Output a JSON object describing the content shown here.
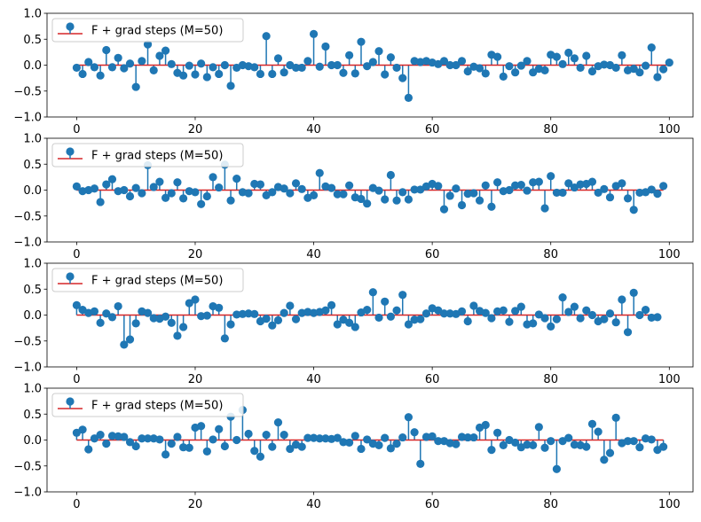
{
  "colors": {
    "marker": "#1f77b4",
    "stem": "#1f77b4",
    "baseline": "#d62728",
    "axes": "#000000",
    "background": "#ffffff",
    "legend_border": "#cccccc"
  },
  "chart_data": [
    {
      "type": "stem",
      "legend": {
        "marker_label": "F + grad steps (M=50)",
        "placement": "upper-left"
      },
      "xlim": [
        -5,
        104
      ],
      "ylim": [
        -1.0,
        1.0
      ],
      "x_ticks": [
        0,
        20,
        40,
        60,
        80,
        100
      ],
      "y_ticks": [
        -1.0,
        -0.5,
        0.0,
        0.5,
        1.0
      ],
      "grid": false,
      "values": [
        -0.05,
        -0.17,
        0.06,
        -0.04,
        -0.2,
        0.29,
        -0.04,
        0.14,
        -0.06,
        0.03,
        -0.42,
        0.08,
        0.4,
        -0.1,
        0.18,
        0.28,
        0.02,
        -0.15,
        -0.2,
        -0.01,
        -0.18,
        0.03,
        -0.23,
        -0.04,
        -0.17,
        0.0,
        -0.4,
        -0.05,
        0.0,
        -0.02,
        -0.04,
        -0.17,
        0.56,
        -0.17,
        0.13,
        -0.14,
        0.0,
        -0.05,
        -0.05,
        0.08,
        0.6,
        -0.03,
        0.36,
        0.0,
        0.0,
        -0.15,
        0.19,
        -0.16,
        0.45,
        -0.02,
        0.06,
        0.27,
        -0.18,
        0.15,
        -0.05,
        -0.25,
        -0.63,
        0.08,
        0.06,
        0.08,
        0.05,
        0.02,
        0.08,
        0.0,
        0.0,
        0.08,
        -0.12,
        -0.03,
        -0.06,
        -0.16,
        0.2,
        0.16,
        -0.22,
        -0.02,
        -0.14,
        -0.01,
        0.08,
        -0.14,
        -0.07,
        -0.1,
        0.2,
        0.16,
        0.02,
        0.24,
        0.13,
        -0.05,
        0.18,
        -0.12,
        -0.02,
        0.01,
        0.0,
        -0.05,
        0.19,
        -0.1,
        -0.07,
        -0.14,
        -0.01,
        0.34,
        -0.23,
        -0.08,
        0.05
      ]
    },
    {
      "type": "stem",
      "legend": {
        "marker_label": "F + grad steps (M=50)",
        "placement": "upper-left"
      },
      "xlim": [
        -5,
        104
      ],
      "ylim": [
        -1.0,
        1.0
      ],
      "x_ticks": [
        0,
        20,
        40,
        60,
        80,
        100
      ],
      "y_ticks": [
        -1.0,
        -0.5,
        0.0,
        0.5,
        1.0
      ],
      "grid": false,
      "values": [
        0.07,
        -0.02,
        0.0,
        0.03,
        -0.23,
        0.11,
        0.21,
        -0.02,
        0.0,
        -0.12,
        0.04,
        -0.06,
        0.48,
        0.06,
        0.16,
        -0.15,
        -0.06,
        0.15,
        -0.16,
        -0.02,
        -0.04,
        -0.27,
        -0.12,
        0.25,
        0.05,
        0.49,
        -0.2,
        0.22,
        -0.04,
        -0.06,
        0.12,
        0.11,
        -0.1,
        -0.04,
        0.06,
        0.03,
        -0.06,
        0.13,
        0.02,
        -0.15,
        -0.1,
        0.33,
        0.07,
        0.04,
        -0.08,
        -0.08,
        0.09,
        -0.14,
        -0.17,
        -0.26,
        0.04,
        -0.01,
        -0.18,
        0.29,
        -0.2,
        -0.04,
        -0.18,
        0.01,
        0.01,
        0.07,
        0.12,
        0.08,
        -0.37,
        -0.11,
        0.03,
        -0.29,
        -0.07,
        -0.06,
        -0.2,
        0.09,
        -0.32,
        0.15,
        -0.02,
        0.0,
        0.09,
        0.1,
        -0.01,
        0.15,
        0.16,
        -0.35,
        0.27,
        -0.05,
        -0.05,
        0.13,
        0.05,
        0.11,
        0.12,
        0.16,
        -0.05,
        0.02,
        -0.14,
        0.08,
        0.13,
        -0.16,
        -0.38,
        -0.05,
        -0.04,
        0.01,
        -0.07,
        0.08
      ]
    },
    {
      "type": "stem",
      "legend": {
        "marker_label": "F + grad steps (M=50)",
        "placement": "upper-left"
      },
      "xlim": [
        -5,
        104
      ],
      "ylim": [
        -1.0,
        1.0
      ],
      "x_ticks": [
        0,
        20,
        40,
        60,
        80,
        100
      ],
      "y_ticks": [
        -1.0,
        -0.5,
        0.0,
        0.5,
        1.0
      ],
      "grid": false,
      "values": [
        0.19,
        0.1,
        0.04,
        0.07,
        -0.15,
        0.03,
        -0.04,
        0.17,
        -0.57,
        -0.47,
        -0.16,
        0.07,
        0.04,
        -0.06,
        -0.07,
        -0.03,
        -0.15,
        -0.4,
        -0.23,
        0.23,
        0.3,
        -0.02,
        -0.01,
        0.17,
        0.14,
        -0.45,
        -0.18,
        0.01,
        0.02,
        0.03,
        0.02,
        -0.12,
        -0.07,
        -0.2,
        -0.1,
        0.04,
        0.18,
        -0.08,
        0.04,
        0.06,
        0.04,
        0.06,
        0.09,
        0.19,
        -0.18,
        -0.09,
        -0.15,
        -0.23,
        0.05,
        0.1,
        0.44,
        -0.05,
        0.26,
        -0.03,
        0.09,
        0.39,
        -0.18,
        -0.09,
        -0.08,
        0.03,
        0.13,
        0.09,
        0.03,
        0.03,
        0.02,
        0.07,
        -0.12,
        0.18,
        0.08,
        0.04,
        -0.06,
        0.07,
        0.09,
        -0.13,
        0.08,
        0.16,
        -0.18,
        -0.16,
        0.01,
        -0.06,
        -0.22,
        -0.08,
        0.34,
        0.06,
        0.16,
        -0.06,
        0.09,
        0.0,
        -0.12,
        -0.08,
        0.03,
        -0.14,
        0.3,
        -0.33,
        0.43,
        0.0,
        0.1,
        -0.05,
        -0.04
      ]
    },
    {
      "type": "stem",
      "legend": {
        "marker_label": "F + grad steps (M=50)",
        "placement": "upper-left"
      },
      "xlim": [
        -5,
        104
      ],
      "ylim": [
        -1.0,
        1.0
      ],
      "x_ticks": [
        0,
        20,
        40,
        60,
        80,
        100
      ],
      "y_ticks": [
        -1.0,
        -0.5,
        0.0,
        0.5,
        1.0
      ],
      "grid": false,
      "values": [
        0.14,
        0.2,
        -0.18,
        0.03,
        0.1,
        -0.07,
        0.08,
        0.07,
        0.06,
        -0.04,
        -0.12,
        0.03,
        0.03,
        0.03,
        0.01,
        -0.28,
        -0.07,
        0.06,
        -0.14,
        -0.15,
        0.24,
        0.27,
        -0.22,
        0.01,
        0.21,
        -0.12,
        0.45,
        0.0,
        0.58,
        0.12,
        -0.21,
        -0.32,
        0.1,
        -0.13,
        0.34,
        0.1,
        -0.17,
        -0.09,
        -0.13,
        0.04,
        0.04,
        0.03,
        0.03,
        0.02,
        0.04,
        -0.04,
        -0.05,
        0.08,
        -0.17,
        0.01,
        -0.07,
        -0.1,
        0.04,
        -0.16,
        -0.07,
        0.05,
        0.44,
        0.15,
        -0.46,
        0.06,
        0.07,
        -0.02,
        -0.02,
        -0.06,
        -0.08,
        0.06,
        0.05,
        0.05,
        0.24,
        0.29,
        -0.19,
        0.14,
        -0.1,
        0.0,
        -0.05,
        -0.14,
        -0.09,
        -0.1,
        0.25,
        -0.15,
        -0.02,
        -0.56,
        -0.02,
        0.04,
        -0.09,
        -0.1,
        -0.13,
        0.31,
        0.16,
        -0.38,
        -0.25,
        0.43,
        -0.06,
        -0.02,
        -0.02,
        -0.14,
        0.03,
        0.01,
        -0.19,
        -0.13
      ]
    }
  ]
}
